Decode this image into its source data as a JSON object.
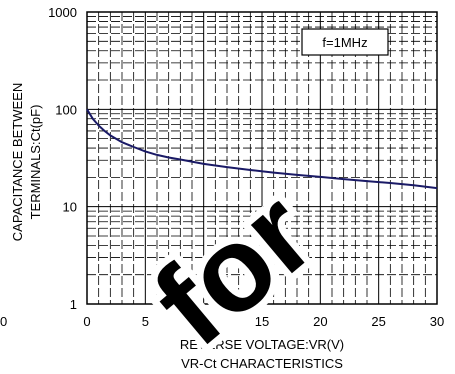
{
  "chart_data": {
    "type": "line",
    "title": "VR-Ct CHARACTERISTICS",
    "xlabel": "REVERSE VOLTAGE:VR(V)",
    "ylabel_line1": "CAPACITANCE BETWEEN",
    "ylabel_line2": "TERMINALS:Ct(pF)",
    "annotation": "f=1MHz",
    "x_scale": "linear",
    "y_scale": "log",
    "xlim": [
      0,
      30
    ],
    "ylim": [
      1,
      1000
    ],
    "x_ticks": [
      "0",
      "5",
      "10",
      "15",
      "20",
      "25",
      "30"
    ],
    "y_ticks": [
      "1",
      "10",
      "100",
      "1000"
    ],
    "grid": true,
    "extra_left_tick": "0",
    "series": [
      {
        "color": "#1a1a66",
        "x": [
          0,
          0.5,
          1,
          1.5,
          2,
          3,
          4,
          5,
          6,
          7,
          8,
          10,
          12,
          14,
          16,
          18,
          20,
          22,
          24,
          26,
          28,
          30
        ],
        "y": [
          100,
          80,
          68,
          60,
          54,
          46,
          41,
          37,
          34,
          32,
          30.5,
          27.5,
          25.5,
          23.8,
          22.4,
          21.2,
          20.2,
          19.2,
          18.3,
          17.5,
          16.6,
          15.5
        ]
      }
    ]
  },
  "watermark": "for"
}
